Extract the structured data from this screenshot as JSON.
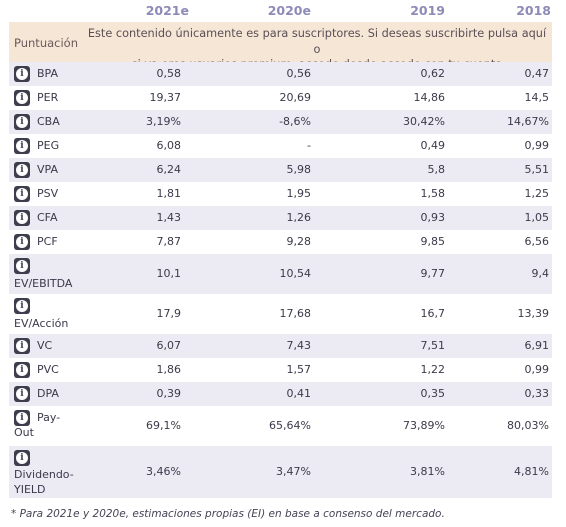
{
  "years": [
    "2021e",
    "2020e",
    "2019",
    "2018"
  ],
  "banner": {
    "label": "Puntuación",
    "message_line1": "Este contenido únicamente es para suscriptores. Si deseas suscribirte pulsa aquí o",
    "message_line2": "si ya eres usuarios premium, accede desde accede con tu cuenta"
  },
  "info_icon": "i",
  "rows": [
    {
      "name": "BPA",
      "values": [
        "0,58",
        "0,56",
        "0,62",
        "0,47"
      ]
    },
    {
      "name": "PER",
      "values": [
        "19,37",
        "20,69",
        "14,86",
        "14,5"
      ]
    },
    {
      "name": "CBA",
      "values": [
        "3,19%",
        "-8,6%",
        "30,42%",
        "14,67%"
      ]
    },
    {
      "name": "PEG",
      "values": [
        "6,08",
        "-",
        "0,49",
        "0,99"
      ]
    },
    {
      "name": "VPA",
      "values": [
        "6,24",
        "5,98",
        "5,8",
        "5,51"
      ]
    },
    {
      "name": "PSV",
      "values": [
        "1,81",
        "1,95",
        "1,58",
        "1,25"
      ]
    },
    {
      "name": "CFA",
      "values": [
        "1,43",
        "1,26",
        "0,93",
        "1,05"
      ]
    },
    {
      "name": "PCF",
      "values": [
        "7,87",
        "9,28",
        "9,85",
        "6,56"
      ]
    },
    {
      "name": "EV/EBITDA",
      "values": [
        "10,1",
        "10,54",
        "9,77",
        "9,4"
      ]
    },
    {
      "name": "EV/Acción",
      "values": [
        "17,9",
        "17,68",
        "16,7",
        "13,39"
      ]
    },
    {
      "name": "VC",
      "values": [
        "6,07",
        "7,43",
        "7,51",
        "6,91"
      ]
    },
    {
      "name": "PVC",
      "values": [
        "1,86",
        "1,57",
        "1,22",
        "0,99"
      ]
    },
    {
      "name": "DPA",
      "values": [
        "0,39",
        "0,41",
        "0,35",
        "0,33"
      ]
    },
    {
      "name_l1": "Pay-",
      "name_l2": "Out",
      "values": [
        "69,1%",
        "65,64%",
        "73,89%",
        "80,03%"
      ]
    },
    {
      "name_l1": "Dividendo-",
      "name_l2": "YIELD",
      "values": [
        "3,46%",
        "3,47%",
        "3,81%",
        "4,81%"
      ]
    }
  ],
  "footnote": "* Para 2021e y 2020e, estimaciones propias (EI) en base a consenso del mercado."
}
